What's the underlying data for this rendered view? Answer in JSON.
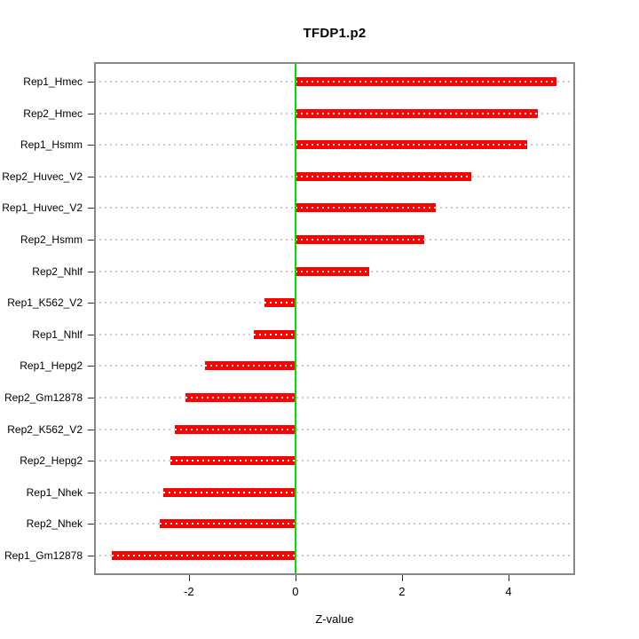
{
  "chart_data": {
    "type": "bar",
    "orientation": "horizontal",
    "title": "TFDP1.p2",
    "xlabel": "Z-value",
    "ylabel": "",
    "categories": [
      "Rep1_Hmec",
      "Rep2_Hmec",
      "Rep1_Hsmm",
      "Rep2_Huvec_V2",
      "Rep1_Huvec_V2",
      "Rep2_Hsmm",
      "Rep2_Nhlf",
      "Rep1_K562_V2",
      "Rep1_Nhlf",
      "Rep1_Hepg2",
      "Rep2_Gm12878",
      "Rep2_K562_V2",
      "Rep2_Hepg2",
      "Rep1_Nhek",
      "Rep2_Nhek",
      "Rep1_Gm12878"
    ],
    "values": [
      4.9,
      4.55,
      4.35,
      3.3,
      2.63,
      2.42,
      1.38,
      -0.58,
      -0.78,
      -1.7,
      -2.07,
      -2.27,
      -2.35,
      -2.48,
      -2.55,
      -3.45
    ],
    "xlim": [
      -3.78,
      5.25
    ],
    "x_tick_values": [
      -2,
      0,
      2,
      4
    ],
    "x_tick_labels": [
      "-2",
      "0",
      "2",
      "4"
    ],
    "grid": "horizontal-dotted",
    "legend": "none",
    "colors": {
      "bar": "#ff0000",
      "bar_inner_dash": "#ffffff",
      "zero_line": "#00e000",
      "frame": "#878787",
      "gridline": "#cccccc",
      "tick": "#333333",
      "text": "#000000"
    }
  }
}
